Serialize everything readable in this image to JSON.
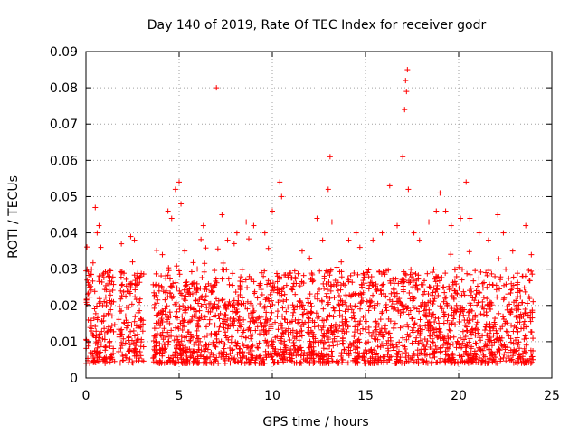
{
  "chart_data": {
    "type": "scatter",
    "title": "Day 140 of 2019, Rate Of TEC Index for receiver godr",
    "xlabel": "GPS time / hours",
    "ylabel": "ROTI / TECUs",
    "xlim": [
      0,
      25
    ],
    "ylim": [
      0,
      0.09
    ],
    "xticks": [
      "0",
      "5",
      "10",
      "15",
      "20",
      "25"
    ],
    "yticks": [
      "0",
      "0.01",
      "0.02",
      "0.03",
      "0.04",
      "0.05",
      "0.06",
      "0.07",
      "0.08",
      "0.09"
    ],
    "grid": true,
    "marker": "plus",
    "color": "#ff0000",
    "series": [
      {
        "name": "ROTI",
        "points": [
          [
            0.3,
            0.03
          ],
          [
            0.5,
            0.047
          ],
          [
            0.6,
            0.04
          ],
          [
            0.7,
            0.042
          ],
          [
            0.8,
            0.036
          ],
          [
            0.2,
            0.025
          ],
          [
            1.2,
            0.028
          ],
          [
            1.9,
            0.037
          ],
          [
            2.4,
            0.039
          ],
          [
            2.5,
            0.032
          ],
          [
            2.6,
            0.038
          ],
          [
            4.1,
            0.034
          ],
          [
            4.4,
            0.046
          ],
          [
            4.6,
            0.044
          ],
          [
            4.8,
            0.052
          ],
          [
            5.0,
            0.054
          ],
          [
            5.1,
            0.048
          ],
          [
            5.3,
            0.035
          ],
          [
            6.3,
            0.042
          ],
          [
            7.0,
            0.08
          ],
          [
            7.3,
            0.045
          ],
          [
            7.6,
            0.038
          ],
          [
            8.1,
            0.04
          ],
          [
            8.6,
            0.043
          ],
          [
            9.0,
            0.042
          ],
          [
            9.6,
            0.04
          ],
          [
            10.0,
            0.046
          ],
          [
            10.4,
            0.054
          ],
          [
            10.5,
            0.05
          ],
          [
            11.6,
            0.035
          ],
          [
            12.0,
            0.033
          ],
          [
            12.4,
            0.044
          ],
          [
            12.7,
            0.038
          ],
          [
            13.0,
            0.052
          ],
          [
            13.1,
            0.061
          ],
          [
            13.2,
            0.043
          ],
          [
            13.7,
            0.032
          ],
          [
            14.1,
            0.038
          ],
          [
            14.5,
            0.04
          ],
          [
            14.7,
            0.036
          ],
          [
            15.4,
            0.038
          ],
          [
            15.9,
            0.04
          ],
          [
            16.3,
            0.053
          ],
          [
            16.7,
            0.042
          ],
          [
            17.0,
            0.061
          ],
          [
            17.1,
            0.074
          ],
          [
            17.15,
            0.082
          ],
          [
            17.2,
            0.079
          ],
          [
            17.25,
            0.085
          ],
          [
            17.3,
            0.052
          ],
          [
            17.6,
            0.04
          ],
          [
            17.9,
            0.038
          ],
          [
            18.4,
            0.043
          ],
          [
            18.8,
            0.046
          ],
          [
            19.0,
            0.051
          ],
          [
            19.3,
            0.046
          ],
          [
            19.6,
            0.042
          ],
          [
            20.1,
            0.044
          ],
          [
            20.4,
            0.054
          ],
          [
            20.6,
            0.044
          ],
          [
            21.1,
            0.04
          ],
          [
            21.6,
            0.038
          ],
          [
            22.1,
            0.045
          ],
          [
            22.4,
            0.04
          ],
          [
            22.9,
            0.035
          ],
          [
            23.6,
            0.042
          ],
          [
            23.9,
            0.034
          ]
        ]
      }
    ]
  }
}
